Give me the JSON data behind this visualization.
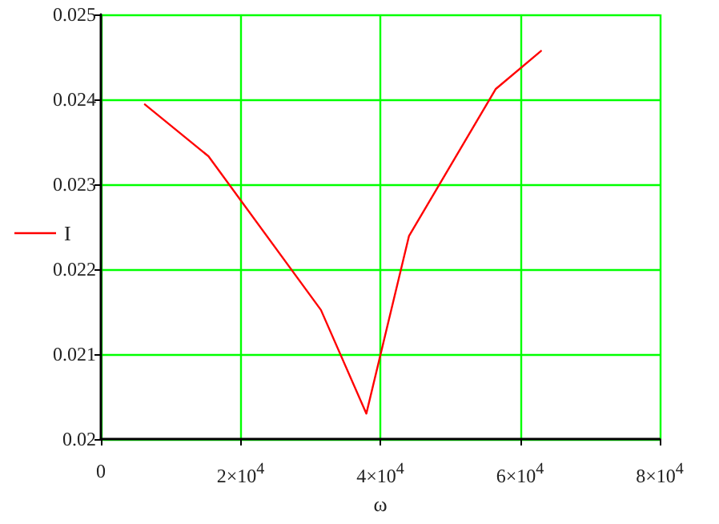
{
  "chart_data": {
    "type": "line",
    "xlabel": "ω",
    "x": [
      6300,
      15400,
      31500,
      38000,
      44100,
      56500,
      63000
    ],
    "series": [
      {
        "name": "I",
        "color": "#ff0000",
        "values": [
          0.02394,
          0.02333,
          0.02152,
          0.0203,
          0.02239,
          0.02412,
          0.02457
        ]
      }
    ],
    "xlim": [
      0,
      80000
    ],
    "xticks": [
      0,
      {
        "value": 20000,
        "label": "2×10$^{4}$"
      },
      {
        "value": 40000,
        "label": "4×10$^{4}$"
      },
      {
        "value": 60000,
        "label": "6×10$^{4}$"
      },
      {
        "value": 80000,
        "label": "8×10$^{4}$"
      }
    ],
    "ylim": [
      0.02,
      0.025
    ],
    "yticks": [
      0.02,
      0.021,
      0.022,
      0.023,
      0.024,
      0.025
    ],
    "grid": true,
    "legend": "left",
    "marker": "none",
    "line_style": "solid"
  }
}
